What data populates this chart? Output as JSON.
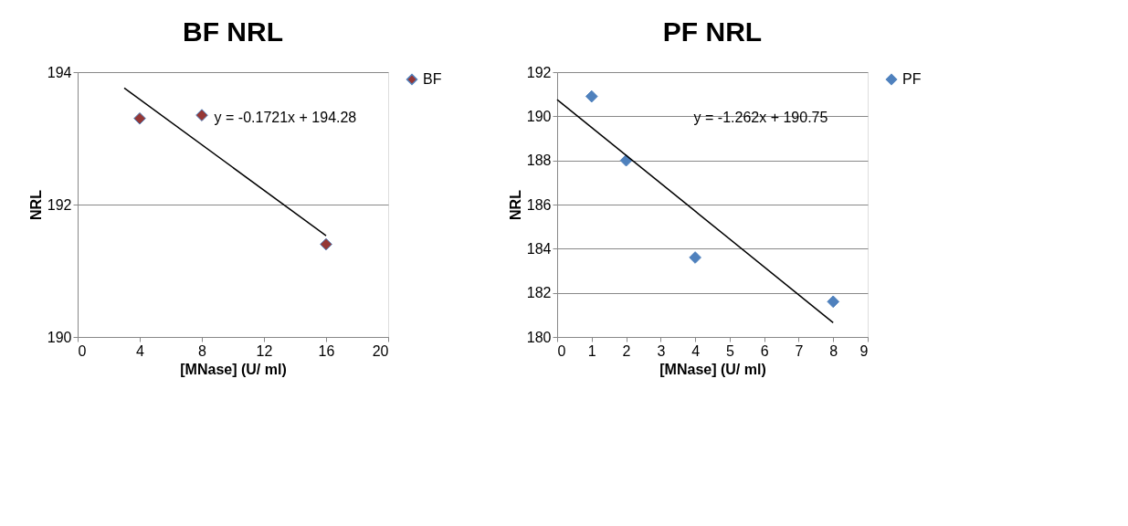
{
  "chart_data": [
    {
      "type": "scatter",
      "title": "BF NRL",
      "xlabel": "[MNase] (U/ ml)",
      "ylabel": "NRL",
      "xlim": [
        0,
        20
      ],
      "xticks": [
        0,
        4,
        8,
        12,
        16,
        20
      ],
      "ylim": [
        190,
        194
      ],
      "yticks": [
        190,
        192,
        194
      ],
      "grid": "y",
      "legend": "right",
      "marker": "diamond",
      "series": [
        {
          "name": "BF",
          "color": "#953735",
          "x": [
            4,
            8,
            16
          ],
          "values": [
            193.3,
            193.35,
            191.4
          ]
        },
        {
          "type": "line",
          "marker": "none",
          "color": "#000000",
          "x": [
            3,
            16
          ],
          "values": [
            193.76,
            191.53
          ]
        }
      ],
      "annotations": [
        "y = -0.1721x + 194.28"
      ]
    },
    {
      "type": "scatter",
      "title": "PF NRL",
      "xlabel": "[MNase] (U/ ml)",
      "ylabel": "NRL",
      "xlim": [
        0,
        9
      ],
      "xticks": [
        0,
        1,
        2,
        3,
        4,
        5,
        6,
        7,
        8,
        9
      ],
      "ylim": [
        180,
        192
      ],
      "yticks": [
        180,
        182,
        184,
        186,
        188,
        190,
        192
      ],
      "grid": "y",
      "legend": "right",
      "marker": "diamond",
      "series": [
        {
          "name": "PF",
          "color": "#4f81bd",
          "x": [
            1,
            2,
            4,
            8
          ],
          "values": [
            190.9,
            188.0,
            183.6,
            181.6
          ]
        },
        {
          "type": "line",
          "marker": "none",
          "color": "#000000",
          "x": [
            0,
            8
          ],
          "values": [
            190.75,
            180.65
          ]
        }
      ],
      "annotations": [
        "y = -1.262x + 190.75"
      ]
    }
  ]
}
